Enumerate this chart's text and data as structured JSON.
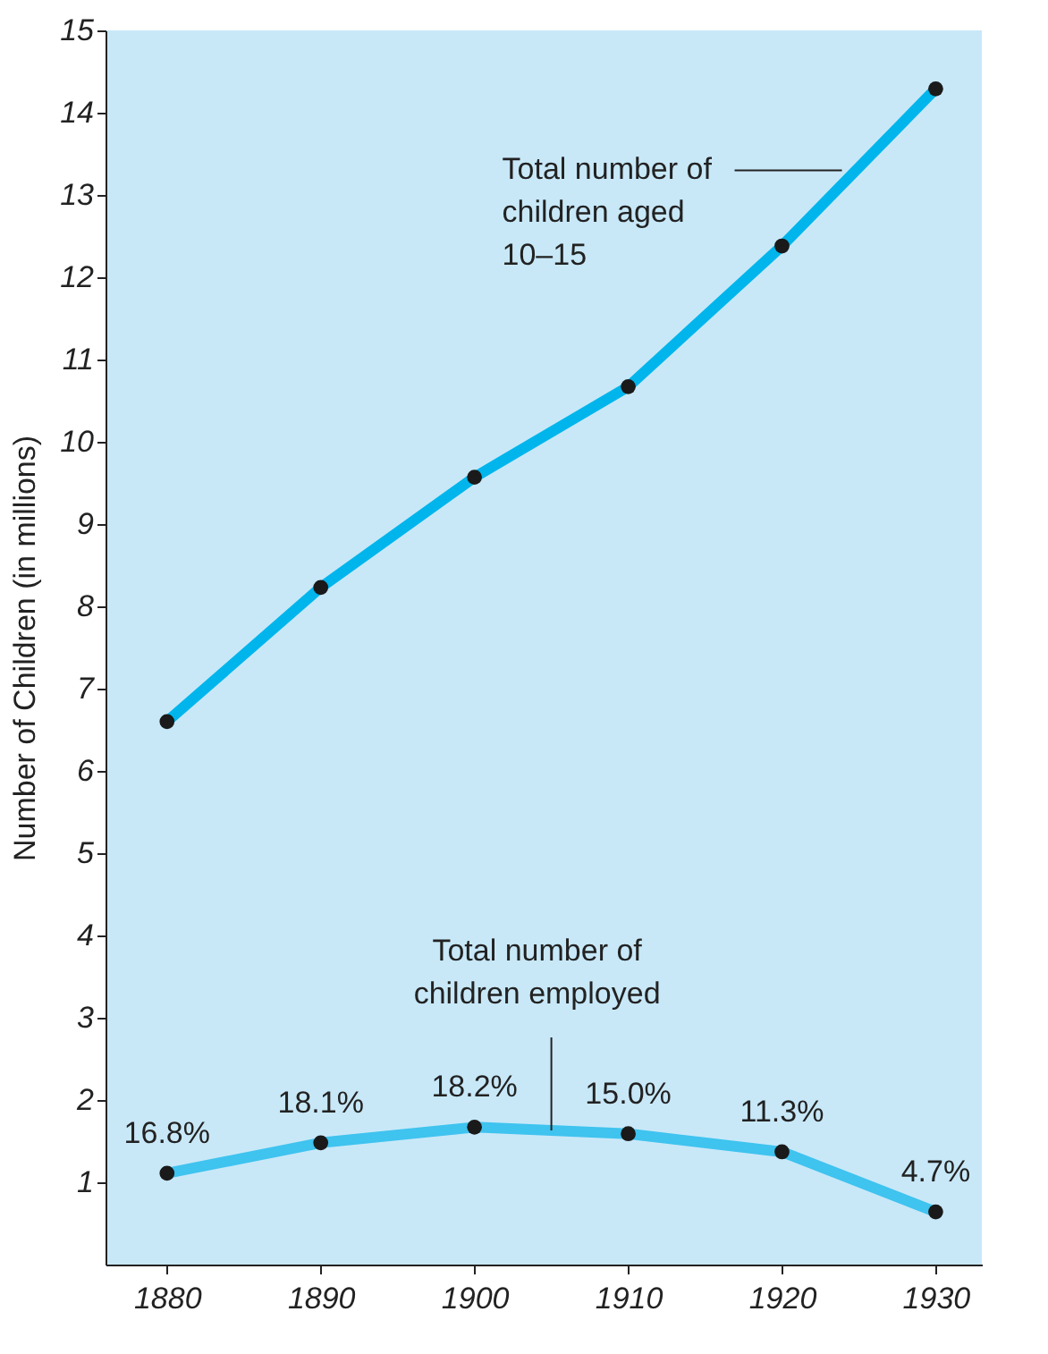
{
  "chart_data": {
    "type": "line",
    "ylabel": "Number of Children (in millions)",
    "x": [
      1880,
      1890,
      1900,
      1910,
      1920,
      1930
    ],
    "series": [
      {
        "color": "#00b5ec",
        "values": [
          6.6,
          8.23,
          9.57,
          10.67,
          12.38,
          14.29
        ]
      },
      {
        "color": "#3fc3ef",
        "values": [
          1.11,
          1.48,
          1.67,
          1.59,
          1.37,
          0.64
        ]
      }
    ],
    "xlim": [
      1876,
      1933
    ],
    "xticks": [
      1880,
      1890,
      1900,
      1910,
      1920,
      1930
    ],
    "ylim": [
      0,
      15
    ],
    "yticks": [
      1,
      2,
      3,
      4,
      5,
      6,
      7,
      8,
      9,
      10,
      11,
      12,
      13,
      14,
      15
    ],
    "grid": false,
    "marker": "circle",
    "line_style": "solid",
    "annotations": [
      {
        "text": "Total number of\nchildren aged\n10–15",
        "x": 1923.9,
        "y": 13.3
      },
      {
        "text": "Total number of\nchildren employed",
        "x": 1905,
        "y": 1.63
      },
      {
        "text": "16.8%",
        "x": 1880,
        "y": 1.11
      },
      {
        "text": "18.1%",
        "x": 1890,
        "y": 1.48
      },
      {
        "text": "18.2%",
        "x": 1900,
        "y": 1.67
      },
      {
        "text": "15.0%",
        "x": 1910,
        "y": 1.59
      },
      {
        "text": "11.3%",
        "x": 1920,
        "y": 1.37
      },
      {
        "text": "4.7%",
        "x": 1930,
        "y": 0.64
      }
    ]
  }
}
